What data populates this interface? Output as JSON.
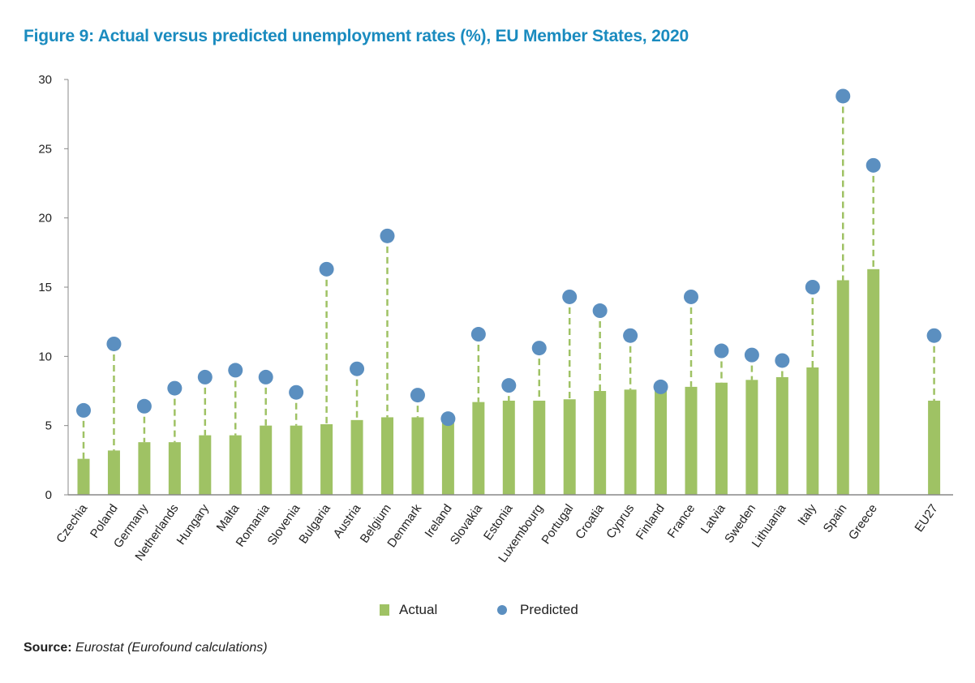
{
  "figure": {
    "title": "Figure 9: Actual versus predicted unemployment rates (%), EU Member States, 2020",
    "source_label": "Source:",
    "source_text": "Eurostat (Eurofound calculations)"
  },
  "colors": {
    "title": "#1a8bbf",
    "actual": "#9fc264",
    "predicted": "#5b8fc0",
    "axis": "#888888"
  },
  "chart_data": {
    "type": "bar",
    "title": "Figure 9: Actual versus predicted unemployment rates (%), EU Member States, 2020",
    "xlabel": "",
    "ylabel": "",
    "ylim": [
      0,
      30
    ],
    "yticks": [
      0,
      5,
      10,
      15,
      20,
      25,
      30
    ],
    "grid": false,
    "legend_position": "bottom-center",
    "categories": [
      "Czechia",
      "Poland",
      "Germany",
      "Netherlands",
      "Hungary",
      "Malta",
      "Romania",
      "Slovenia",
      "Bulgaria",
      "Austria",
      "Belgium",
      "Denmark",
      "Ireland",
      "Slovakia",
      "Estonia",
      "Luxembourg",
      "Portugal",
      "Croatia",
      "Cyprus",
      "Finland",
      "France",
      "Latvia",
      "Sweden",
      "Lithuania",
      "Italy",
      "Spain",
      "Greece",
      "EU27"
    ],
    "series": [
      {
        "name": "Actual",
        "type": "bar",
        "values": [
          2.6,
          3.2,
          3.8,
          3.8,
          4.3,
          4.3,
          5.0,
          5.0,
          5.1,
          5.4,
          5.6,
          5.6,
          5.6,
          6.7,
          6.8,
          6.8,
          6.9,
          7.5,
          7.6,
          7.7,
          7.8,
          8.1,
          8.3,
          8.5,
          9.2,
          15.5,
          16.3,
          6.8
        ]
      },
      {
        "name": "Predicted",
        "type": "scatter",
        "values": [
          6.1,
          10.9,
          6.4,
          7.7,
          8.5,
          9.0,
          8.5,
          7.4,
          16.3,
          9.1,
          18.7,
          7.2,
          5.5,
          11.6,
          7.9,
          10.6,
          14.3,
          13.3,
          11.5,
          7.8,
          14.3,
          10.4,
          10.1,
          9.7,
          15.0,
          28.8,
          23.8,
          11.5
        ]
      }
    ],
    "gap_before_category": "EU27"
  },
  "legend": {
    "items": [
      {
        "label": "Actual"
      },
      {
        "label": "Predicted"
      }
    ]
  }
}
